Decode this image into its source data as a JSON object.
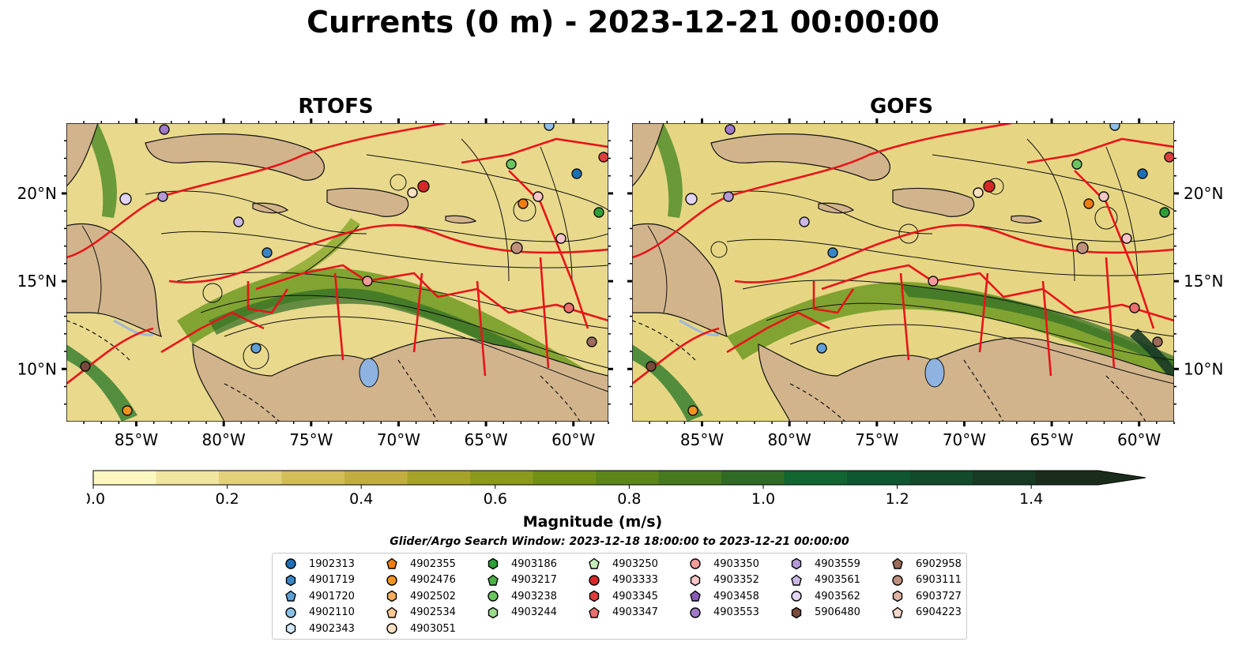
{
  "title": "Currents (0 m) - 2023-12-21 00:00:00",
  "panels": [
    {
      "id": "rtofs",
      "title": "RTOFS"
    },
    {
      "id": "gofs",
      "title": "GOFS"
    }
  ],
  "map": {
    "lon_labels": [
      "85°W",
      "80°W",
      "75°W",
      "70°W",
      "65°W",
      "60°W"
    ],
    "lat_labels": [
      "20°N",
      "15°N",
      "10°N"
    ],
    "lon_range": [
      -89,
      -58
    ],
    "lat_range": [
      7,
      24
    ]
  },
  "colorbar": {
    "label": "Magnitude (m/s)",
    "ticks": [
      "0.0",
      "0.2",
      "0.4",
      "0.6",
      "0.8",
      "1.0",
      "1.2",
      "1.4"
    ],
    "range": [
      0,
      1.5
    ],
    "extend": "max",
    "colors": [
      "#fdf8c0",
      "#f2e5a0",
      "#e3d07a",
      "#d3bd58",
      "#c2ae40",
      "#a7a32a",
      "#8b9a1c",
      "#739016",
      "#5c861a",
      "#47791e",
      "#2f6b24",
      "#126430",
      "#0e5730",
      "#124a2c",
      "#173a24",
      "#1a2d1c"
    ]
  },
  "search_window": "Glider/Argo Search Window: 2023-12-18 18:00:00 to 2023-12-21 00:00:00",
  "legend": [
    {
      "label": "1902313",
      "marker": "circle",
      "color": "#1f6fb4"
    },
    {
      "label": "4901719",
      "marker": "hexagon",
      "color": "#3a85c4"
    },
    {
      "label": "4901720",
      "marker": "pentagon",
      "color": "#5fa0d6"
    },
    {
      "label": "4902110",
      "marker": "circle",
      "color": "#8cc0e8"
    },
    {
      "label": "4902343",
      "marker": "hexagon",
      "color": "#d3e8f8"
    },
    {
      "label": "4902355",
      "marker": "pentagon",
      "color": "#f07d0e"
    },
    {
      "label": "4902476",
      "marker": "circle",
      "color": "#f5921e"
    },
    {
      "label": "4902502",
      "marker": "hexagon",
      "color": "#f8ae5c"
    },
    {
      "label": "4902534",
      "marker": "pentagon",
      "color": "#fbca92"
    },
    {
      "label": "4903051",
      "marker": "circle",
      "color": "#fde0c2"
    },
    {
      "label": "4903186",
      "marker": "hexagon",
      "color": "#2e9e36"
    },
    {
      "label": "4903217",
      "marker": "pentagon",
      "color": "#4bb346"
    },
    {
      "label": "4903238",
      "marker": "circle",
      "color": "#6cc45e"
    },
    {
      "label": "4903244",
      "marker": "hexagon",
      "color": "#9ad88a"
    },
    {
      "label": "4903250",
      "marker": "pentagon",
      "color": "#c6eeba"
    },
    {
      "label": "4903333",
      "marker": "circle",
      "color": "#d62728"
    },
    {
      "label": "4903345",
      "marker": "hexagon",
      "color": "#de3e3e"
    },
    {
      "label": "4903347",
      "marker": "pentagon",
      "color": "#ec6e6e"
    },
    {
      "label": "4903350",
      "marker": "circle",
      "color": "#f29a9a"
    },
    {
      "label": "4903352",
      "marker": "hexagon",
      "color": "#f8c6c6"
    },
    {
      "label": "4903458",
      "marker": "pentagon",
      "color": "#8a5cb8"
    },
    {
      "label": "4903553",
      "marker": "circle",
      "color": "#a07ac8"
    },
    {
      "label": "4903559",
      "marker": "hexagon",
      "color": "#b69ad8"
    },
    {
      "label": "4903561",
      "marker": "pentagon",
      "color": "#cbb8e6"
    },
    {
      "label": "4903562",
      "marker": "circle",
      "color": "#e2d4f2"
    },
    {
      "label": "5906480",
      "marker": "hexagon",
      "color": "#7a4a3a"
    },
    {
      "label": "6902958",
      "marker": "pentagon",
      "color": "#9b6a58"
    },
    {
      "label": "6903111",
      "marker": "circle",
      "color": "#c0907e"
    },
    {
      "label": "6903727",
      "marker": "hexagon",
      "color": "#e0b4a4"
    },
    {
      "label": "6904223",
      "marker": "pentagon",
      "color": "#f5d6c8"
    }
  ]
}
